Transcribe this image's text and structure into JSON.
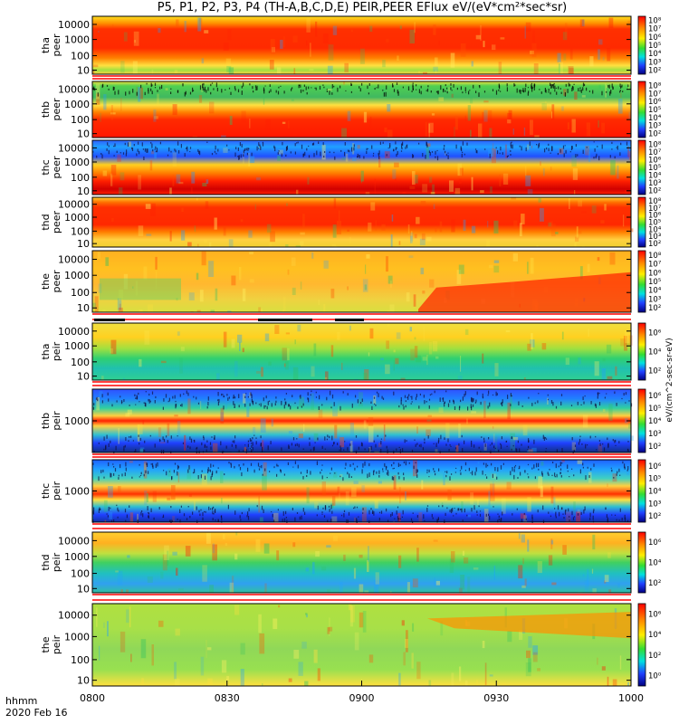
{
  "title": "P5, P1, P2, P3, P4 (TH-A,B,C,D,E) PEIR,PEER EFlux eV/(eV*cm²*sec*sr)",
  "footer": {
    "time_label": "hhmm",
    "date_label": "2020 Feb 16"
  },
  "x_tick_labels": [
    "0800",
    "0830",
    "0900",
    "0930",
    "1000"
  ],
  "colors": {
    "frame": "#000000",
    "spectrogram_hot": "#ff2000",
    "spectrogram_cold": "#4070ff"
  },
  "chart_data": [
    {
      "type": "heatmap",
      "probe": "tha",
      "species": "peer",
      "ylabel": "tha peer",
      "yticks": [
        "10",
        "100",
        "1000",
        "10000"
      ],
      "ylim": [
        5,
        20000
      ],
      "yscale": "log",
      "colorbar_ticks": [
        "10²",
        "10³",
        "10⁴",
        "10⁵",
        "10⁶",
        "10⁷",
        "10⁸"
      ],
      "xlim": [
        "0800",
        "1000"
      ],
      "dominant": "red band 300-10000 eV, yellow/green edges"
    },
    {
      "type": "heatmap",
      "probe": "thb",
      "species": "peer",
      "ylabel": "thb peer",
      "yticks": [
        "10",
        "100",
        "1000",
        "10000"
      ],
      "ylim": [
        5,
        20000
      ],
      "yscale": "log",
      "colorbar_ticks": [
        "10²",
        "10³",
        "10⁴",
        "10⁵",
        "10⁶",
        "10⁷",
        "10⁸"
      ],
      "xlim": [
        "0800",
        "1000"
      ],
      "dominant": "red below 100 eV, green speckle above 1000 eV"
    },
    {
      "type": "heatmap",
      "probe": "thc",
      "species": "peer",
      "ylabel": "thc peer",
      "yticks": [
        "10",
        "100",
        "1000",
        "10000"
      ],
      "ylim": [
        5,
        20000
      ],
      "yscale": "log",
      "colorbar_ticks": [
        "10²",
        "10³",
        "10⁴",
        "10⁵",
        "10⁶",
        "10⁷",
        "10⁸"
      ],
      "xlim": [
        "0800",
        "1000"
      ],
      "dominant": "red below 100 eV, blue speckle above 1000 eV"
    },
    {
      "type": "heatmap",
      "probe": "thd",
      "species": "peer",
      "ylabel": "thd peer",
      "yticks": [
        "10",
        "100",
        "1000",
        "10000"
      ],
      "ylim": [
        5,
        20000
      ],
      "yscale": "log",
      "colorbar_ticks": [
        "10²",
        "10³",
        "10⁴",
        "10⁵",
        "10⁶",
        "10⁷",
        "10⁸"
      ],
      "xlim": [
        "0800",
        "1000"
      ],
      "dominant": "red band 300-10000 eV, yellow/green edges"
    },
    {
      "type": "heatmap",
      "probe": "the",
      "species": "peer",
      "ylabel": "the peer",
      "yticks": [
        "10",
        "100",
        "1000",
        "10000"
      ],
      "ylim": [
        5,
        20000
      ],
      "yscale": "log",
      "colorbar_ticks": [
        "10²",
        "10³",
        "10⁴",
        "10⁵",
        "10⁶",
        "10⁷",
        "10⁸"
      ],
      "xlim": [
        "0800",
        "1000"
      ],
      "dominant": "orange/yellow, red growth after 0915 below 1000 eV"
    },
    {
      "type": "heatmap",
      "probe": "tha",
      "species": "peir",
      "ylabel": "tha peir",
      "yticks": [
        "10",
        "100",
        "1000",
        "10000"
      ],
      "ylim": [
        5,
        20000
      ],
      "yscale": "log",
      "colorbar_ticks": [
        "10²",
        "10⁴",
        "10⁶"
      ],
      "xlim": [
        "0800",
        "1000"
      ],
      "dominant": "yellow high energy, green/cyan speckle low energy"
    },
    {
      "type": "heatmap",
      "probe": "thb",
      "species": "peir",
      "ylabel": "thb peir",
      "yticks": [
        "1000"
      ],
      "ylim": [
        5,
        20000
      ],
      "yscale": "log",
      "colorbar_ticks": [
        "10²",
        "10³",
        "10⁴",
        "10⁵",
        "10⁶"
      ],
      "xlim": [
        "0800",
        "1000"
      ],
      "dominant": "red band near 1000 eV, blue speckle edges"
    },
    {
      "type": "heatmap",
      "probe": "thc",
      "species": "peir",
      "ylabel": "thc peir",
      "yticks": [
        "1000"
      ],
      "ylim": [
        5,
        20000
      ],
      "yscale": "log",
      "colorbar_ticks": [
        "10²",
        "10³",
        "10⁴",
        "10⁵",
        "10⁶"
      ],
      "xlim": [
        "0800",
        "1000"
      ],
      "dominant": "red band near 1000 eV, blue speckle edges"
    },
    {
      "type": "heatmap",
      "probe": "thd",
      "species": "peir",
      "ylabel": "thd peir",
      "yticks": [
        "10",
        "100",
        "1000",
        "10000"
      ],
      "ylim": [
        5,
        20000
      ],
      "yscale": "log",
      "colorbar_ticks": [
        "10²",
        "10⁴",
        "10⁶"
      ],
      "xlim": [
        "0800",
        "1000"
      ],
      "dominant": "yellow high energy, green/cyan speckle low energy"
    },
    {
      "type": "heatmap",
      "probe": "the",
      "species": "peir",
      "ylabel": "the peir",
      "yticks": [
        "10",
        "100",
        "1000",
        "10000"
      ],
      "ylim": [
        5,
        20000
      ],
      "yscale": "log",
      "colorbar_ticks": [
        "10⁰",
        "10²",
        "10⁴",
        "10⁶"
      ],
      "xlim": [
        "0800",
        "1000"
      ],
      "dominant": "yellow/green, orange band after 0920 above 1000 eV"
    }
  ],
  "colorbar_axis_label": "eV/(cm^2-sec-sr-eV)"
}
